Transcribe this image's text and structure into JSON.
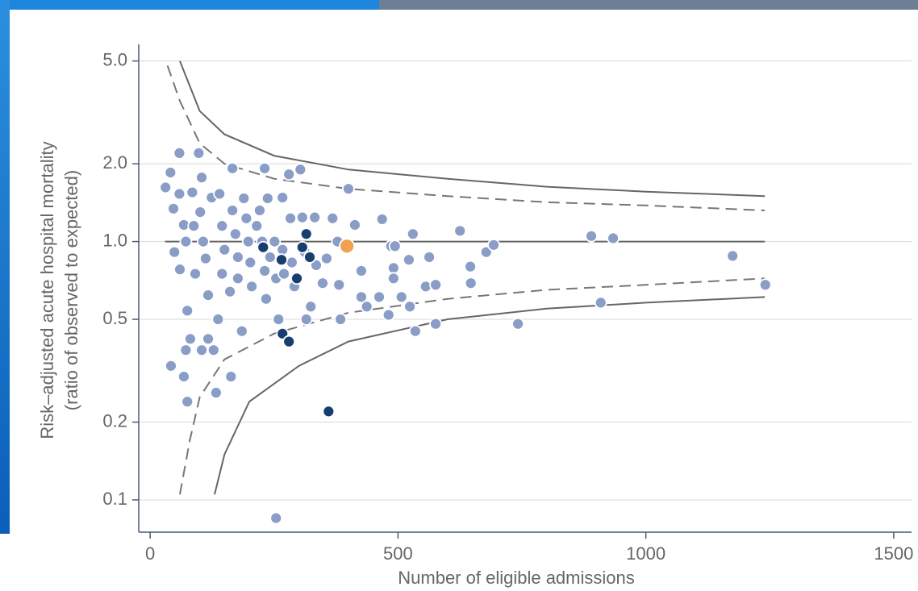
{
  "chart_data": {
    "type": "scatter",
    "y_label": [
      "Risk–adjusted acute hospital mortality",
      "(ratio of observed to expected)"
    ],
    "x_label": "Number of eligible admissions",
    "xlim": [
      -23,
      1536
    ],
    "xticks": [
      0,
      500,
      1000,
      1500
    ],
    "ylim": [
      0.075,
      5.8
    ],
    "log_y": true,
    "grid": true,
    "yticks": [
      {
        "value": 5,
        "label": "5.0"
      },
      {
        "value": 2,
        "label": "2.0"
      },
      {
        "value": 1,
        "label": "1.0"
      },
      0.5,
      0.2,
      0.1
    ],
    "lines": [
      {
        "color": "#666666",
        "dashed": false,
        "x": [
          30,
          1240
        ],
        "values": [
          1,
          1
        ]
      },
      {
        "color": "#666666",
        "dashed": false,
        "x": [
          60,
          100,
          150,
          250,
          400,
          600,
          800,
          1000,
          1240
        ],
        "values": [
          5.0,
          3.2,
          2.6,
          2.15,
          1.9,
          1.75,
          1.63,
          1.56,
          1.5
        ]
      },
      {
        "color": "#777777",
        "dashed": true,
        "x": [
          35,
          60,
          100,
          150,
          250,
          400,
          600,
          800,
          1000,
          1240
        ],
        "values": [
          4.8,
          3.5,
          2.4,
          2.0,
          1.75,
          1.6,
          1.5,
          1.42,
          1.38,
          1.32
        ]
      },
      {
        "color": "#777777",
        "dashed": true,
        "x": [
          60,
          80,
          100,
          150,
          250,
          400,
          600,
          800,
          1000,
          1240
        ],
        "values": [
          0.105,
          0.17,
          0.25,
          0.35,
          0.44,
          0.53,
          0.6,
          0.65,
          0.68,
          0.72
        ]
      },
      {
        "color": "#666666",
        "dashed": false,
        "x": [
          130,
          150,
          200,
          300,
          400,
          600,
          800,
          1000,
          1240
        ],
        "values": [
          0.105,
          0.15,
          0.24,
          0.33,
          0.41,
          0.5,
          0.55,
          0.58,
          0.61
        ]
      }
    ],
    "series": [
      {
        "color": "#8a9dc6",
        "x": [
          31,
          41,
          47,
          49,
          59,
          59,
          60,
          68,
          72,
          75,
          72,
          68,
          75,
          42,
          85,
          88,
          91,
          98,
          104,
          101,
          107,
          112,
          117,
          104,
          128,
          133,
          137,
          124,
          140,
          145,
          150,
          145,
          161,
          166,
          166,
          172,
          177,
          177,
          185,
          163,
          189,
          194,
          198,
          202,
          205,
          215,
          221,
          226,
          231,
          234,
          231,
          237,
          242,
          251,
          254,
          267,
          267,
          259,
          270,
          280,
          283,
          286,
          291,
          303,
          307,
          312,
          315,
          324,
          332,
          335,
          348,
          356,
          368,
          378,
          381,
          384,
          400,
          413,
          426,
          426,
          437,
          468,
          462,
          481,
          486,
          491,
          494,
          491,
          507,
          524,
          522,
          530,
          535,
          556,
          563,
          576,
          576,
          625,
          646,
          647,
          678,
          693,
          742,
          890,
          934,
          909,
          1175,
          1241,
          254,
          81,
          117
        ],
        "values": [
          1.62,
          1.85,
          1.34,
          0.91,
          2.2,
          1.53,
          0.78,
          1.16,
          1.0,
          0.54,
          0.38,
          0.3,
          0.24,
          0.33,
          1.55,
          1.15,
          0.75,
          2.2,
          1.77,
          1.3,
          1.0,
          0.86,
          0.62,
          0.38,
          0.38,
          0.26,
          0.5,
          1.48,
          1.53,
          1.15,
          0.93,
          0.75,
          0.64,
          1.92,
          1.32,
          1.07,
          0.87,
          0.72,
          0.45,
          0.3,
          1.47,
          1.23,
          1.0,
          0.83,
          0.67,
          1.15,
          1.32,
          1.0,
          0.77,
          0.6,
          1.92,
          1.47,
          0.87,
          1.0,
          0.72,
          1.48,
          0.93,
          0.5,
          0.75,
          1.82,
          1.23,
          0.83,
          0.67,
          1.9,
          1.24,
          0.91,
          0.5,
          0.56,
          1.24,
          0.81,
          0.69,
          0.86,
          1.23,
          1.0,
          0.68,
          0.5,
          1.6,
          1.16,
          0.77,
          0.61,
          0.56,
          1.22,
          0.61,
          0.52,
          0.96,
          0.79,
          0.96,
          0.72,
          0.61,
          0.56,
          0.85,
          1.07,
          0.45,
          0.67,
          0.87,
          0.68,
          0.48,
          1.1,
          0.8,
          0.69,
          0.91,
          0.97,
          0.48,
          1.05,
          1.03,
          0.58,
          0.88,
          0.68,
          0.085,
          0.42,
          0.42
        ]
      },
      {
        "color": "#173e6e",
        "x": [
          228,
          265,
          296,
          307,
          315,
          322,
          267,
          280,
          360
        ],
        "values": [
          0.95,
          0.85,
          0.72,
          0.95,
          1.07,
          0.87,
          0.44,
          0.41,
          0.22
        ]
      },
      {
        "color": "#f0a050",
        "x": [
          397
        ],
        "values": [
          0.96
        ]
      }
    ]
  }
}
